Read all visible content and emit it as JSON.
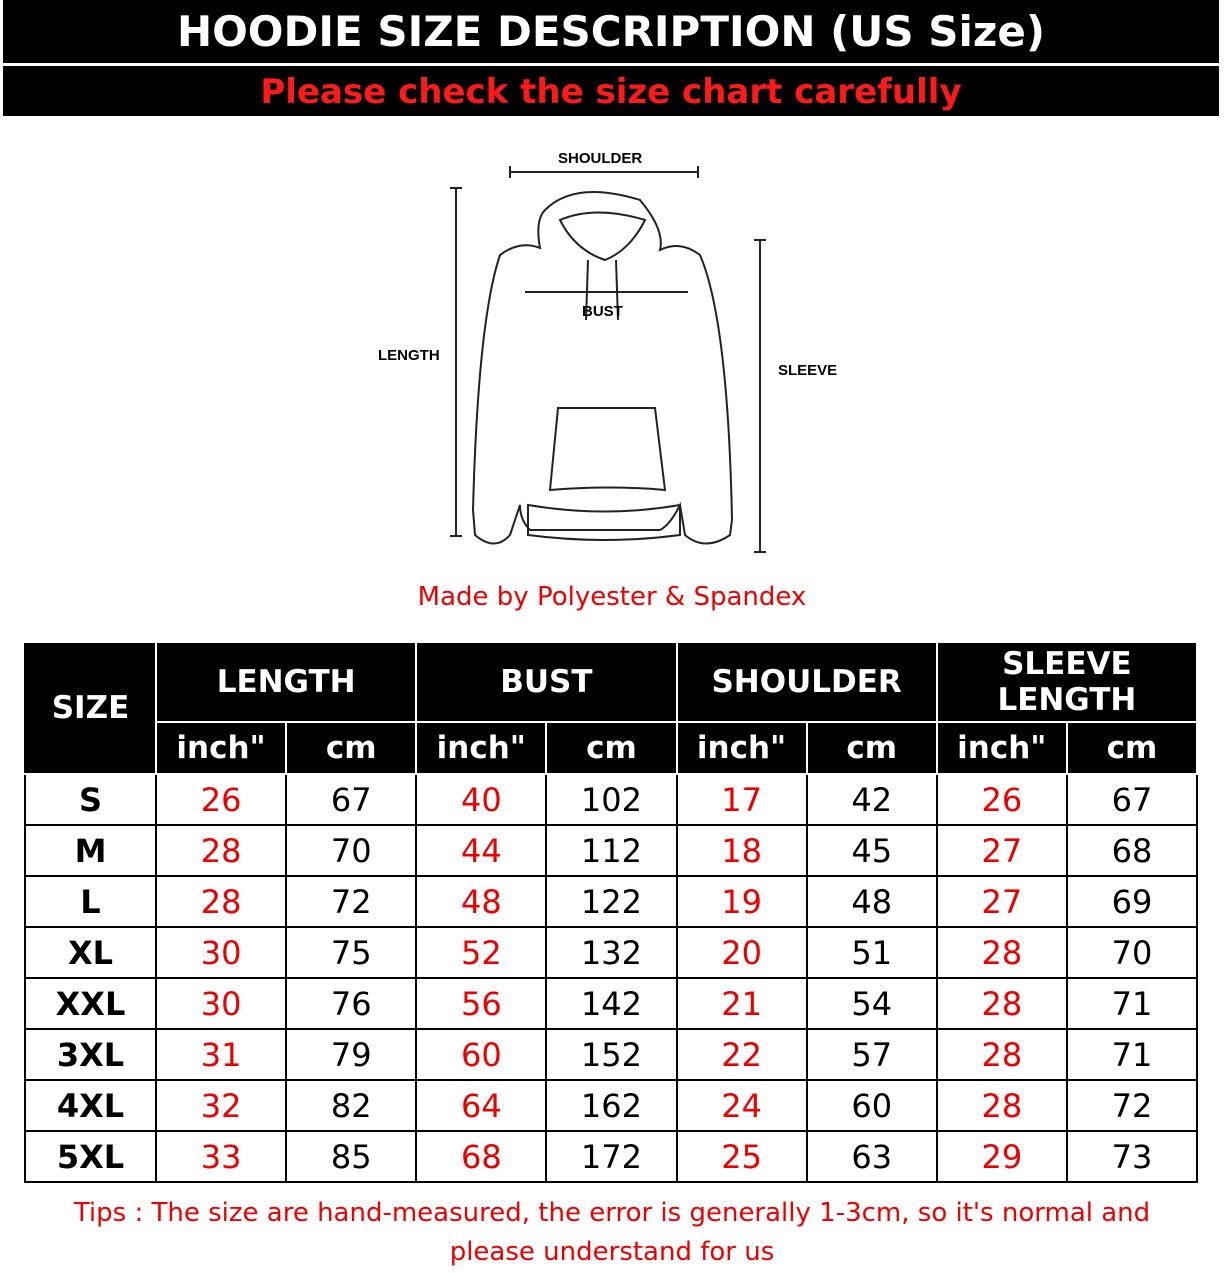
{
  "header": {
    "title": "HOODIE SIZE DESCRIPTION (US Size)",
    "subtitle": "Please check the size chart carefully"
  },
  "diagram": {
    "shoulder": "SHOULDER",
    "bust": "BUST",
    "length": "LENGTH",
    "sleeve": "SLEEVE"
  },
  "material": "Made by Polyester & Spandex",
  "tips": "Tips : The size are hand-measured, the error is generally 1-3cm, so it's normal and please understand for us",
  "colors": {
    "accent": "#ee0000",
    "header_bg": "#000000"
  },
  "chart_data": {
    "type": "table",
    "columns": {
      "size": "SIZE",
      "groups": [
        "LENGTH",
        "BUST",
        "SHOULDER",
        "SLEEVE LENGTH"
      ],
      "units": [
        "inch\"",
        "cm"
      ]
    },
    "rows": [
      {
        "size": "S",
        "values": [
          "26",
          "67",
          "40",
          "102",
          "17",
          "42",
          "26",
          "67"
        ]
      },
      {
        "size": "M",
        "values": [
          "28",
          "70",
          "44",
          "112",
          "18",
          "45",
          "27",
          "68"
        ]
      },
      {
        "size": "L",
        "values": [
          "28",
          "72",
          "48",
          "122",
          "19",
          "48",
          "27",
          "69"
        ]
      },
      {
        "size": "XL",
        "values": [
          "30",
          "75",
          "52",
          "132",
          "20",
          "51",
          "28",
          "70"
        ]
      },
      {
        "size": "XXL",
        "values": [
          "30",
          "76",
          "56",
          "142",
          "21",
          "54",
          "28",
          "71"
        ]
      },
      {
        "size": "3XL",
        "values": [
          "31",
          "79",
          "60",
          "152",
          "22",
          "57",
          "28",
          "71"
        ]
      },
      {
        "size": "4XL",
        "values": [
          "32",
          "82",
          "64",
          "162",
          "24",
          "60",
          "28",
          "72"
        ]
      },
      {
        "size": "5XL",
        "values": [
          "33",
          "85",
          "68",
          "172",
          "25",
          "63",
          "29",
          "73"
        ]
      }
    ]
  }
}
